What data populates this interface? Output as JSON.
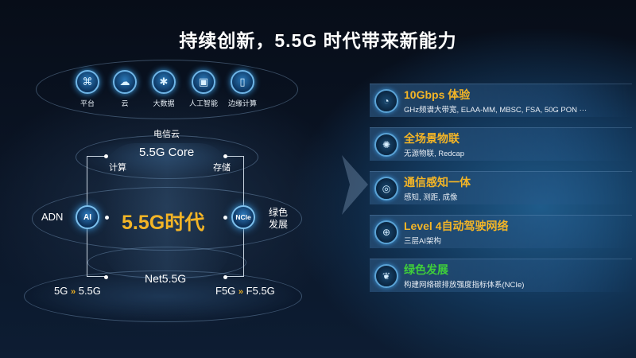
{
  "title": "持续创新，5.5G 时代带来新能力",
  "top_icons": [
    {
      "label": "平台",
      "icon": "network-platform-icon"
    },
    {
      "label": "云",
      "icon": "cloud-icon"
    },
    {
      "label": "大数据",
      "icon": "big-data-icon"
    },
    {
      "label": "人工智能",
      "icon": "ai-chip-icon"
    },
    {
      "label": "边缘计算",
      "icon": "edge-computing-icon"
    }
  ],
  "diagram": {
    "telecom_cloud": "电信云",
    "core": "5.5G Core",
    "compute": "计算",
    "storage": "存储",
    "center": "5.5G时代",
    "left_label": "ADN",
    "left_node": "AI",
    "right_node": "NCle",
    "right_label_1": "绿色",
    "right_label_2": "发展",
    "net": "Net5.5G",
    "bottom_left_from": "5G",
    "bottom_left_to": "5.5G",
    "bottom_right_from": "F5G",
    "bottom_right_to": "F5.5G",
    "arrow_glyph": "»"
  },
  "features": [
    {
      "title": "10Gbps 体验",
      "desc": "GHz频谱大带宽, ELAA-MM, MBSC, FSA, 50G PON ···",
      "icon": "speed-gauge-icon",
      "color": "#f4b526"
    },
    {
      "title": "全场景物联",
      "desc": "无源物联, Redcap",
      "icon": "iot-icon",
      "color": "#f4b526"
    },
    {
      "title": "通信感知一体",
      "desc": "感知, 测距, 成像",
      "icon": "sensing-icon",
      "color": "#f4b526"
    },
    {
      "title": "Level 4自动驾驶网络",
      "desc": "三层AI架构",
      "icon": "autonomous-network-icon",
      "color": "#f4b526"
    },
    {
      "title": "绿色发展",
      "desc": "构建网络碳排放强度指标体系(NCIe)",
      "icon": "leaf-icon",
      "color": "#3fcf3a"
    }
  ],
  "colors": {
    "accent_yellow": "#f4b526",
    "accent_green": "#3fcf3a",
    "background": "#0b1628"
  }
}
